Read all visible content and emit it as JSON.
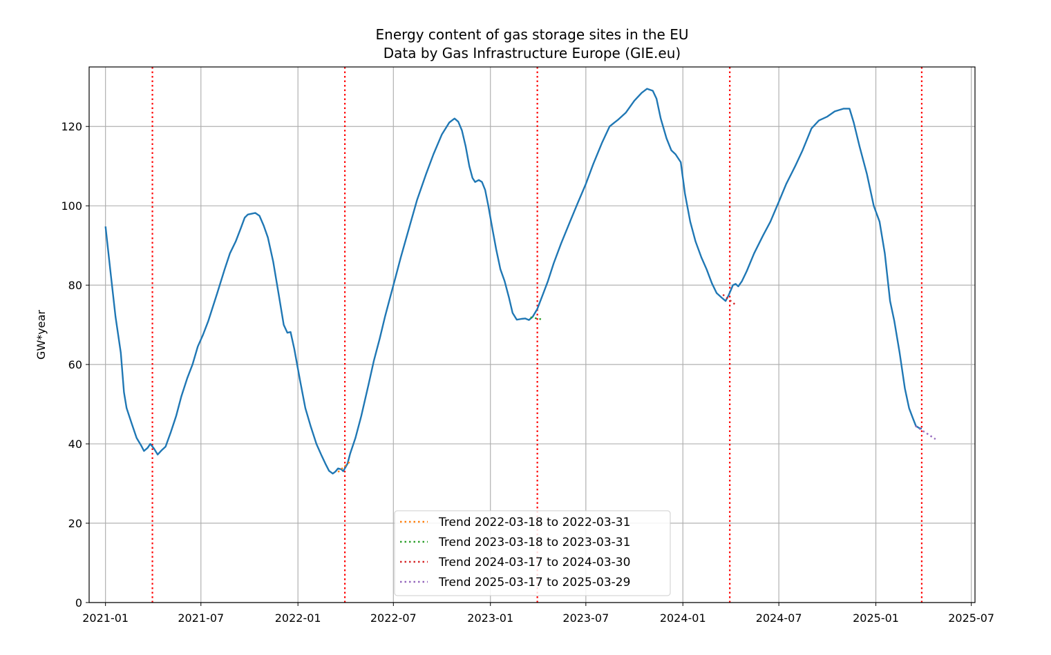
{
  "chart_data": {
    "type": "line",
    "title": "Energy content of gas storage sites in the EU",
    "subtitle": "Data by Gas Infrastructure Europe (GIE.eu)",
    "xlabel": "",
    "ylabel": "GW*year",
    "xlim": [
      "2020-12-01",
      "2025-07-08"
    ],
    "ylim": [
      0,
      135
    ],
    "x_ticks": [
      "2021-01",
      "2021-07",
      "2022-01",
      "2022-07",
      "2023-01",
      "2023-07",
      "2024-01",
      "2024-07",
      "2025-01",
      "2025-07"
    ],
    "y_ticks": [
      0,
      20,
      40,
      60,
      80,
      100,
      120
    ],
    "grid": true,
    "legend_position": "lower center",
    "colors": {
      "main": "#1f77b4",
      "vlines": "#ff0000",
      "grid": "#b0b0b0"
    },
    "main_series": {
      "color": "#1f77b4",
      "points": [
        [
          "2021-01-01",
          94.8
        ],
        [
          "2021-01-10",
          84.0
        ],
        [
          "2021-01-20",
          72.0
        ],
        [
          "2021-01-30",
          63.0
        ],
        [
          "2021-02-05",
          53.0
        ],
        [
          "2021-02-10",
          49.0
        ],
        [
          "2021-02-20",
          45.0
        ],
        [
          "2021-03-01",
          41.5
        ],
        [
          "2021-03-10",
          39.5
        ],
        [
          "2021-03-15",
          38.2
        ],
        [
          "2021-03-22",
          39.0
        ],
        [
          "2021-03-27",
          40.0
        ],
        [
          "2021-04-03",
          38.8
        ],
        [
          "2021-04-10",
          37.3
        ],
        [
          "2021-04-17",
          38.3
        ],
        [
          "2021-04-25",
          39.3
        ],
        [
          "2021-05-05",
          43.0
        ],
        [
          "2021-05-15",
          47.0
        ],
        [
          "2021-05-25",
          52.0
        ],
        [
          "2021-06-05",
          56.5
        ],
        [
          "2021-06-15",
          60.0
        ],
        [
          "2021-06-25",
          64.5
        ],
        [
          "2021-07-05",
          67.5
        ],
        [
          "2021-07-15",
          71.0
        ],
        [
          "2021-08-01",
          78.0
        ],
        [
          "2021-08-15",
          84.0
        ],
        [
          "2021-08-25",
          88.0
        ],
        [
          "2021-09-05",
          91.0
        ],
        [
          "2021-09-15",
          94.5
        ],
        [
          "2021-09-22",
          97.0
        ],
        [
          "2021-09-28",
          97.8
        ],
        [
          "2021-10-05",
          98.0
        ],
        [
          "2021-10-12",
          98.2
        ],
        [
          "2021-10-20",
          97.5
        ],
        [
          "2021-10-28",
          95.0
        ],
        [
          "2021-11-05",
          92.0
        ],
        [
          "2021-11-15",
          86.0
        ],
        [
          "2021-11-25",
          78.0
        ],
        [
          "2021-12-05",
          70.0
        ],
        [
          "2021-12-12",
          68.0
        ],
        [
          "2021-12-18",
          68.2
        ],
        [
          "2021-12-25",
          64.0
        ],
        [
          "2022-01-05",
          56.0
        ],
        [
          "2022-01-15",
          49.0
        ],
        [
          "2022-01-25",
          44.5
        ],
        [
          "2022-02-05",
          40.0
        ],
        [
          "2022-02-15",
          37.0
        ],
        [
          "2022-02-22",
          35.0
        ],
        [
          "2022-03-01",
          33.2
        ],
        [
          "2022-03-08",
          32.5
        ],
        [
          "2022-03-13",
          33.0
        ],
        [
          "2022-03-18",
          33.8
        ],
        [
          "2022-03-24",
          33.6
        ],
        [
          "2022-03-28",
          33.1
        ],
        [
          "2022-04-05",
          35.0
        ],
        [
          "2022-04-10",
          37.5
        ],
        [
          "2022-04-20",
          41.5
        ],
        [
          "2022-05-01",
          47.0
        ],
        [
          "2022-05-15",
          55.0
        ],
        [
          "2022-05-25",
          61.0
        ],
        [
          "2022-06-05",
          66.5
        ],
        [
          "2022-06-15",
          72.0
        ],
        [
          "2022-06-25",
          77.0
        ],
        [
          "2022-07-05",
          82.0
        ],
        [
          "2022-07-15",
          87.0
        ],
        [
          "2022-08-01",
          95.0
        ],
        [
          "2022-08-15",
          101.5
        ],
        [
          "2022-09-01",
          108.0
        ],
        [
          "2022-09-15",
          113.0
        ],
        [
          "2022-10-01",
          118.0
        ],
        [
          "2022-10-15",
          121.0
        ],
        [
          "2022-10-25",
          122.0
        ],
        [
          "2022-11-01",
          121.2
        ],
        [
          "2022-11-08",
          119.0
        ],
        [
          "2022-11-15",
          115.0
        ],
        [
          "2022-11-22",
          110.0
        ],
        [
          "2022-11-28",
          107.0
        ],
        [
          "2022-12-03",
          106.0
        ],
        [
          "2022-12-10",
          106.5
        ],
        [
          "2022-12-16",
          106.0
        ],
        [
          "2022-12-22",
          104.0
        ],
        [
          "2022-12-28",
          100.0
        ],
        [
          "2023-01-05",
          94.0
        ],
        [
          "2023-01-12",
          89.0
        ],
        [
          "2023-01-20",
          84.0
        ],
        [
          "2023-01-28",
          81.0
        ],
        [
          "2023-02-05",
          77.0
        ],
        [
          "2023-02-12",
          73.0
        ],
        [
          "2023-02-20",
          71.3
        ],
        [
          "2023-03-01",
          71.5
        ],
        [
          "2023-03-08",
          71.6
        ],
        [
          "2023-03-15",
          71.2
        ],
        [
          "2023-03-22",
          72.0
        ],
        [
          "2023-03-31",
          74.0
        ],
        [
          "2023-04-10",
          77.5
        ],
        [
          "2023-04-20",
          81.0
        ],
        [
          "2023-05-01",
          85.5
        ],
        [
          "2023-05-15",
          90.5
        ],
        [
          "2023-06-01",
          96.0
        ],
        [
          "2023-06-15",
          100.5
        ],
        [
          "2023-07-01",
          105.5
        ],
        [
          "2023-07-15",
          110.5
        ],
        [
          "2023-08-01",
          116.0
        ],
        [
          "2023-08-15",
          120.0
        ],
        [
          "2023-09-01",
          121.8
        ],
        [
          "2023-09-15",
          123.5
        ],
        [
          "2023-10-01",
          126.5
        ],
        [
          "2023-10-15",
          128.5
        ],
        [
          "2023-10-25",
          129.5
        ],
        [
          "2023-11-05",
          129.0
        ],
        [
          "2023-11-12",
          127.0
        ],
        [
          "2023-11-20",
          122.0
        ],
        [
          "2023-12-01",
          117.0
        ],
        [
          "2023-12-10",
          114.0
        ],
        [
          "2023-12-18",
          113.0
        ],
        [
          "2023-12-28",
          111.0
        ],
        [
          "2024-01-05",
          103.0
        ],
        [
          "2024-01-15",
          96.0
        ],
        [
          "2024-01-25",
          91.0
        ],
        [
          "2024-02-05",
          87.0
        ],
        [
          "2024-02-15",
          84.0
        ],
        [
          "2024-02-25",
          80.5
        ],
        [
          "2024-03-05",
          78.0
        ],
        [
          "2024-03-15",
          76.8
        ],
        [
          "2024-03-22",
          76.0
        ],
        [
          "2024-03-28",
          77.5
        ],
        [
          "2024-04-05",
          80.0
        ],
        [
          "2024-04-10",
          80.3
        ],
        [
          "2024-04-15",
          79.7
        ],
        [
          "2024-04-22",
          81.0
        ],
        [
          "2024-05-01",
          83.5
        ],
        [
          "2024-05-15",
          88.0
        ],
        [
          "2024-06-01",
          92.5
        ],
        [
          "2024-06-15",
          96.0
        ],
        [
          "2024-07-01",
          101.0
        ],
        [
          "2024-07-15",
          105.5
        ],
        [
          "2024-08-01",
          110.0
        ],
        [
          "2024-08-15",
          114.0
        ],
        [
          "2024-09-01",
          119.5
        ],
        [
          "2024-09-15",
          121.5
        ],
        [
          "2024-10-01",
          122.5
        ],
        [
          "2024-10-15",
          123.8
        ],
        [
          "2024-11-01",
          124.5
        ],
        [
          "2024-11-12",
          124.5
        ],
        [
          "2024-11-20",
          121.0
        ],
        [
          "2024-12-01",
          115.0
        ],
        [
          "2024-12-15",
          108.0
        ],
        [
          "2024-12-28",
          100.0
        ],
        [
          "2025-01-08",
          96.0
        ],
        [
          "2025-01-18",
          88.0
        ],
        [
          "2025-01-28",
          76.0
        ],
        [
          "2025-02-05",
          71.0
        ],
        [
          "2025-02-15",
          63.0
        ],
        [
          "2025-02-25",
          54.0
        ],
        [
          "2025-03-05",
          49.0
        ],
        [
          "2025-03-12",
          46.5
        ],
        [
          "2025-03-18",
          44.5
        ],
        [
          "2025-03-24",
          44.0
        ],
        [
          "2025-03-29",
          43.8
        ]
      ]
    },
    "vertical_lines": [
      "2021-03-31",
      "2022-03-31",
      "2023-03-31",
      "2024-03-30",
      "2025-03-29"
    ],
    "series": [
      {
        "name": "Trend 2022-03-18 to 2022-03-31",
        "color": "#ff7f0e",
        "points": [
          [
            "2022-03-18",
            32.9
          ],
          [
            "2022-04-12",
            35.8
          ]
        ]
      },
      {
        "name": "Trend 2023-03-18 to 2023-03-31",
        "color": "#2ca02c",
        "points": [
          [
            "2023-03-18",
            71.9
          ],
          [
            "2023-04-12",
            71.3
          ]
        ]
      },
      {
        "name": "Trend 2024-03-17 to 2024-03-30",
        "color": "#d62728",
        "points": [
          [
            "2024-03-17",
            77.6
          ],
          [
            "2024-04-12",
            74.8
          ]
        ]
      },
      {
        "name": "Trend 2025-03-17 to 2025-03-29",
        "color": "#9467bd",
        "points": [
          [
            "2025-03-17",
            44.5
          ],
          [
            "2025-04-24",
            41.2
          ]
        ]
      }
    ]
  }
}
